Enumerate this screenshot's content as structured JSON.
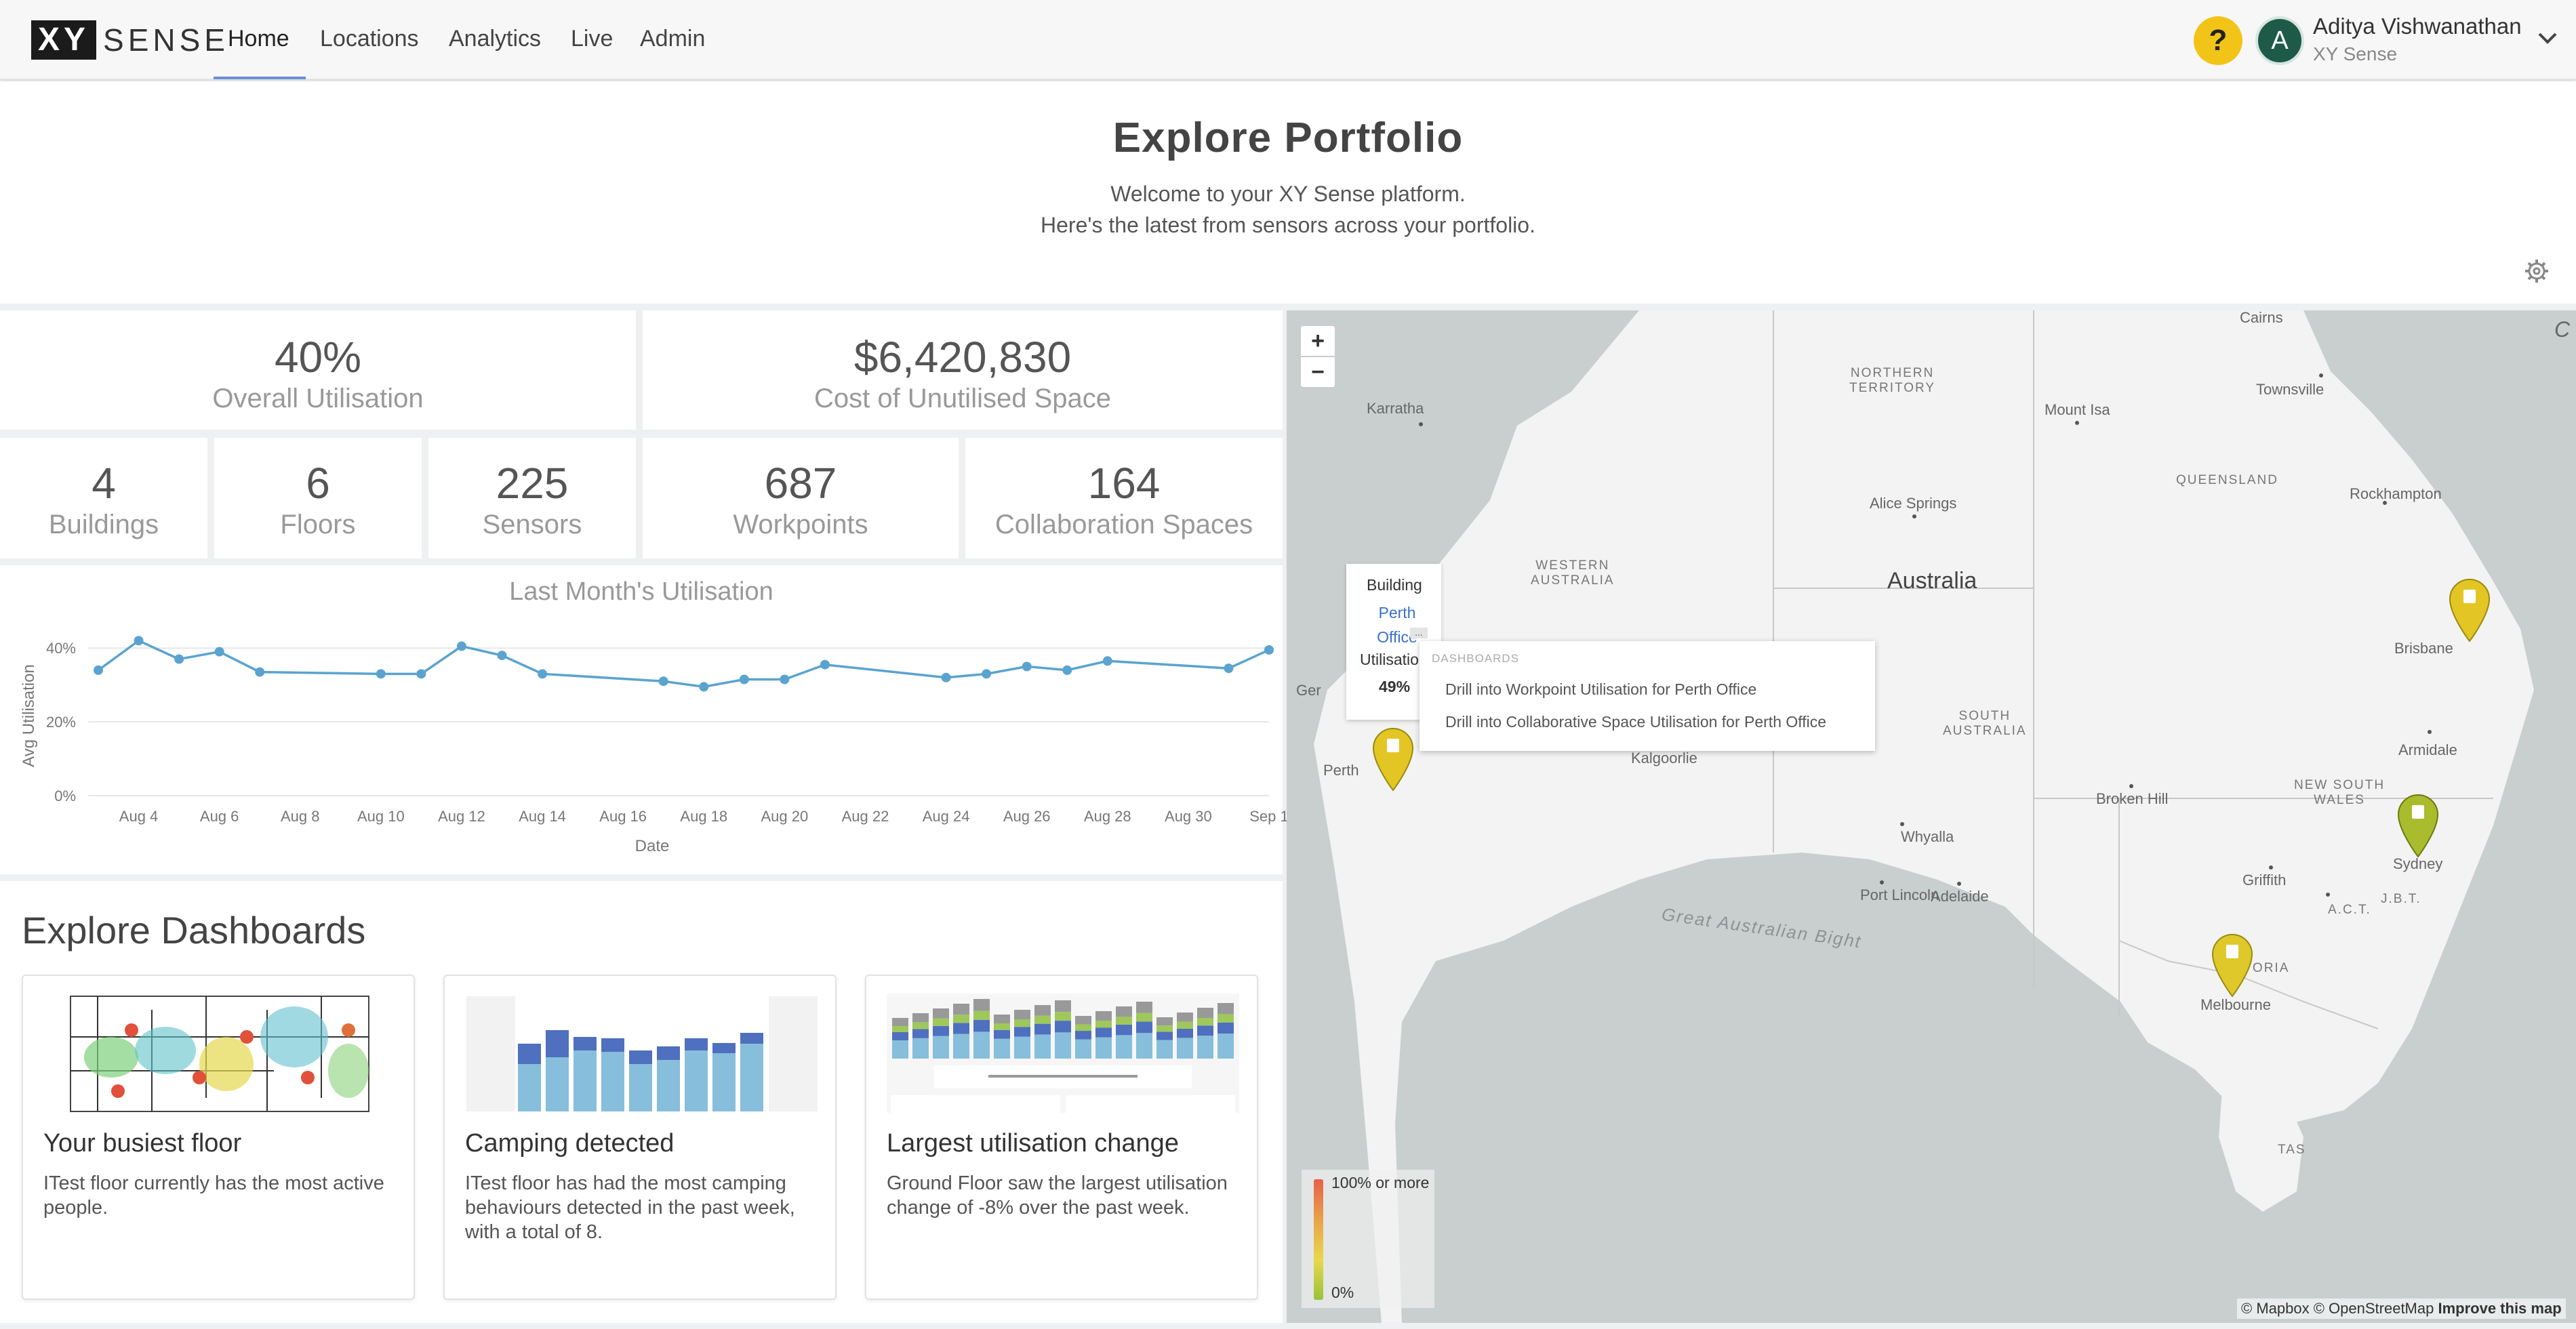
{
  "nav": {
    "logo_xy": "XY",
    "logo_sense": "SENSE",
    "items": [
      {
        "label": "Home",
        "active": true
      },
      {
        "label": "Locations"
      },
      {
        "label": "Analytics"
      },
      {
        "label": "Live"
      },
      {
        "label": "Admin"
      }
    ],
    "help_label": "?",
    "avatar_initial": "A",
    "user_name": "Aditya Vishwanathan",
    "user_org": "XY Sense"
  },
  "hero": {
    "title": "Explore Portfolio",
    "line1": "Welcome to your XY Sense platform.",
    "line2": "Here's the latest from sensors across your portfolio."
  },
  "stats": {
    "utilisation": {
      "value": "40%",
      "label": "Overall Utilisation"
    },
    "cost": {
      "value": "$6,420,830",
      "label": "Cost of Unutilised Space"
    },
    "buildings": {
      "value": "4",
      "label": "Buildings"
    },
    "floors": {
      "value": "6",
      "label": "Floors"
    },
    "sensors": {
      "value": "225",
      "label": "Sensors"
    },
    "workpoints": {
      "value": "687",
      "label": "Workpoints"
    },
    "collab": {
      "value": "164",
      "label": "Collaboration Spaces"
    }
  },
  "chart_data": {
    "type": "line",
    "title": "Last Month's Utilisation",
    "xlabel": "Date",
    "ylabel": "Avg Utilisation",
    "x_ticks": [
      "Aug 4",
      "Aug 6",
      "Aug 8",
      "Aug 10",
      "Aug 12",
      "Aug 14",
      "Aug 16",
      "Aug 18",
      "Aug 20",
      "Aug 22",
      "Aug 24",
      "Aug 26",
      "Aug 28",
      "Aug 30",
      "Sep 1"
    ],
    "y_ticks": [
      "0%",
      "20%",
      "40%"
    ],
    "ylim": [
      0,
      45
    ],
    "xlim_days": [
      3,
      32
    ],
    "grid": true,
    "color": "#5aa3cf",
    "points": [
      {
        "day": 3,
        "value": 34
      },
      {
        "day": 4,
        "value": 42
      },
      {
        "day": 5,
        "value": 37
      },
      {
        "day": 6,
        "value": 39
      },
      {
        "day": 7,
        "value": 33.5
      },
      {
        "day": 10,
        "value": 33
      },
      {
        "day": 11,
        "value": 33
      },
      {
        "day": 12,
        "value": 40.5
      },
      {
        "day": 13,
        "value": 38
      },
      {
        "day": 14,
        "value": 33
      },
      {
        "day": 17,
        "value": 31
      },
      {
        "day": 18,
        "value": 29.5
      },
      {
        "day": 19,
        "value": 31.5
      },
      {
        "day": 20,
        "value": 31.5
      },
      {
        "day": 21,
        "value": 35.5
      },
      {
        "day": 24,
        "value": 32
      },
      {
        "day": 25,
        "value": 33
      },
      {
        "day": 26,
        "value": 35
      },
      {
        "day": 27,
        "value": 34
      },
      {
        "day": 28,
        "value": 36.5
      },
      {
        "day": 31,
        "value": 34.5
      },
      {
        "day": 32,
        "value": 39.5
      }
    ]
  },
  "explore": {
    "title": "Explore Dashboards",
    "cards": [
      {
        "title": "Your busiest floor",
        "desc": "ITest floor currently has the most active people."
      },
      {
        "title": "Camping detected",
        "desc": "ITest floor has had the most camping behaviours detected in the past week, with a total of 8."
      },
      {
        "title": "Largest utilisation change",
        "desc": "Ground Floor saw the largest utilisation change of -8% over the past week."
      }
    ]
  },
  "map": {
    "zoom_in": "+",
    "zoom_out": "−",
    "labels": {
      "country": "Australia",
      "northern_territory": "NORTHERN\nTERRITORY",
      "western_australia": "WESTERN\nAUSTRALIA",
      "south_australia": "SOUTH\nAUSTRALIA",
      "queensland": "QUEENSLAND",
      "nsw": "NEW SOUTH\nWALES",
      "act": "A.C.T.",
      "jbt": "J.B.T.",
      "tas": "TAS",
      "bight": "Great Australian Bight",
      "cairns": "Cairns",
      "townsville": "Townsville",
      "mount_isa": "Mount Isa",
      "karratha": "Karratha",
      "alice_springs": "Alice Springs",
      "rockhampton": "Rockhampton",
      "brisbane": "Brisbane",
      "armidale": "Armidale",
      "broken_hill": "Broken Hill",
      "whyalla": "Whyalla",
      "port_lincoln": "Port Lincoln",
      "adelaide": "Adelaide",
      "griffith": "Griffith",
      "sydney": "Sydney",
      "melbourne": "Melbourne",
      "victoria": "VICTORIA",
      "kalgoorlie": "Kalgoorlie",
      "perth": "Perth",
      "ger": "Ger",
      "c": "C"
    },
    "popup": {
      "building_label": "Building",
      "building_name": "Perth Office",
      "more": "...",
      "util_label": "Utilisation",
      "util_value": "49%"
    },
    "menu": {
      "header": "DASHBOARDS",
      "items": [
        "Drill into Workpoint Utilisation for Perth Office",
        "Drill into Collaborative Space Utilisation for Perth Office"
      ]
    },
    "legend": {
      "top": "100% or more",
      "bottom": "0%"
    },
    "attribution": {
      "mapbox": "© Mapbox",
      "osm": "© OpenStreetMap",
      "improve": "Improve this map"
    },
    "pin_colors": {
      "perth": "#e3c624",
      "brisbane": "#e3c624",
      "melbourne": "#dfc92a",
      "sydney": "#a8bc2e"
    }
  }
}
